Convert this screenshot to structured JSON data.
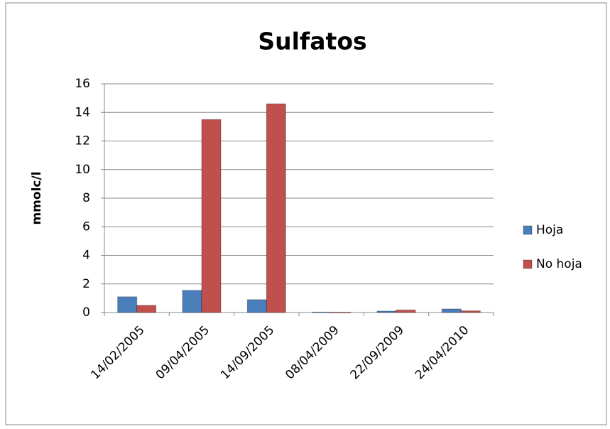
{
  "chart_data": {
    "type": "bar",
    "title": "Sulfatos",
    "y_label": "mmolc/l",
    "categories": [
      "14/02/2005",
      "09/04/2005",
      "14/09/2005",
      "08/04/2009",
      "22/09/2009",
      "24/04/2010"
    ],
    "series": [
      {
        "name": "Hoja",
        "color": "#4a7ebb",
        "values": [
          1.1,
          1.55,
          0.9,
          0.03,
          0.1,
          0.25
        ]
      },
      {
        "name": "No hoja",
        "color": "#c0504d",
        "values": [
          0.5,
          13.5,
          14.6,
          0.02,
          0.18,
          0.12
        ]
      }
    ],
    "ylim": [
      0,
      16
    ],
    "yticks": [
      0,
      2,
      4,
      6,
      8,
      10,
      12,
      14,
      16
    ],
    "grid": true,
    "legend": "right"
  }
}
